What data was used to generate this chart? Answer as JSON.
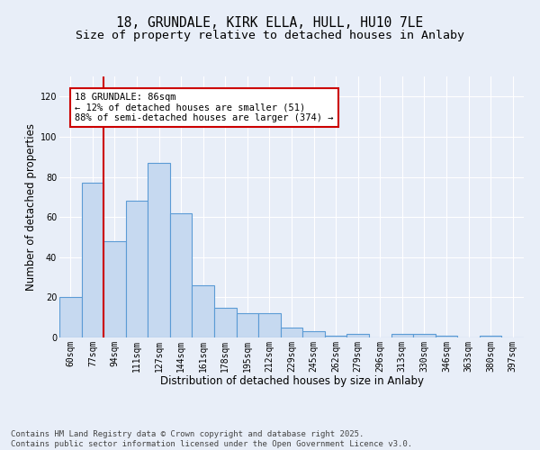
{
  "title_line1": "18, GRUNDALE, KIRK ELLA, HULL, HU10 7LE",
  "title_line2": "Size of property relative to detached houses in Anlaby",
  "xlabel": "Distribution of detached houses by size in Anlaby",
  "ylabel": "Number of detached properties",
  "bar_labels": [
    "60sqm",
    "77sqm",
    "94sqm",
    "111sqm",
    "127sqm",
    "144sqm",
    "161sqm",
    "178sqm",
    "195sqm",
    "212sqm",
    "229sqm",
    "245sqm",
    "262sqm",
    "279sqm",
    "296sqm",
    "313sqm",
    "330sqm",
    "346sqm",
    "363sqm",
    "380sqm",
    "397sqm"
  ],
  "bar_values": [
    20,
    77,
    48,
    68,
    87,
    62,
    26,
    15,
    12,
    12,
    5,
    3,
    1,
    2,
    0,
    2,
    2,
    1,
    0,
    1,
    0
  ],
  "bar_color": "#c6d9f0",
  "bar_edge_color": "#5b9bd5",
  "property_line_bin": 1,
  "annotation_text": "18 GRUNDALE: 86sqm\n← 12% of detached houses are smaller (51)\n88% of semi-detached houses are larger (374) →",
  "annotation_box_color": "#ffffff",
  "annotation_box_edge": "#cc0000",
  "vline_color": "#cc0000",
  "ylim": [
    0,
    130
  ],
  "yticks": [
    0,
    20,
    40,
    60,
    80,
    100,
    120
  ],
  "footer_text": "Contains HM Land Registry data © Crown copyright and database right 2025.\nContains public sector information licensed under the Open Government Licence v3.0.",
  "background_color": "#e8eef8",
  "plot_bg_color": "#e8eef8",
  "grid_color": "#ffffff",
  "title_fontsize": 10.5,
  "subtitle_fontsize": 9.5,
  "axis_label_fontsize": 8.5,
  "tick_fontsize": 7,
  "annotation_fontsize": 7.5,
  "footer_fontsize": 6.5
}
